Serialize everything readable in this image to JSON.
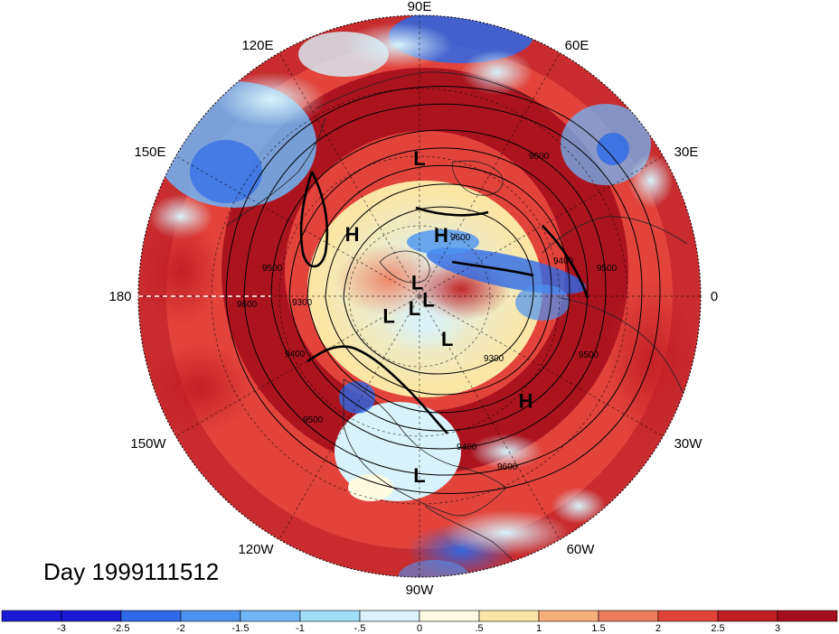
{
  "day_label": "Day 1999111512",
  "longitude_labels": {
    "lon_90e": "90E",
    "lon_60e": "60E",
    "lon_30e": "30E",
    "lon_0": "0",
    "lon_30w": "30W",
    "lon_60w": "60W",
    "lon_90w": "90W",
    "lon_120w": "120W",
    "lon_150w": "150W",
    "lon_180": "180",
    "lon_150e": "150E",
    "lon_120e": "120E"
  },
  "pressure_centers": [
    {
      "type": "L",
      "lon": 90,
      "lat": 30
    },
    {
      "type": "H",
      "lon": 70,
      "lat": 60
    },
    {
      "type": "H",
      "lon": 138,
      "lat": 48
    },
    {
      "type": "L",
      "lon": 100,
      "lat": 84
    },
    {
      "type": "L",
      "lon": -30,
      "lat": 85
    },
    {
      "type": "L",
      "lon": -110,
      "lat": 83
    },
    {
      "type": "L",
      "lon": -145,
      "lat": 72
    },
    {
      "type": "L",
      "lon": -58,
      "lat": 65
    },
    {
      "type": "H",
      "lon": -45,
      "lat": 25
    },
    {
      "type": "L",
      "lon": -90,
      "lat": 15
    }
  ],
  "contour_labels": [
    "9600",
    "9500",
    "9400",
    "9300",
    "9600",
    "9500",
    "9400",
    "9600",
    "9500",
    "9300",
    "9600",
    "9400",
    "9500"
  ],
  "colorbar": {
    "tick_labels": [
      "-3",
      "-2.5",
      "-2",
      "-1.5",
      "-1",
      "-.5",
      "0",
      ".5",
      "1",
      "1.5",
      "2",
      "2.5",
      "3"
    ],
    "colors": [
      "#1a1ad6",
      "#2d6ae8",
      "#4b93f2",
      "#6fb6f7",
      "#a3def9",
      "#d8f3fb",
      "#fdfbe0",
      "#fbe6a6",
      "#f7b07a",
      "#ef7c5c",
      "#e2443c",
      "#c11e24",
      "#a50f1c"
    ]
  },
  "colors": {
    "warm_anomaly": "#b81c24",
    "cold_anomaly": "#2d6ae8"
  }
}
